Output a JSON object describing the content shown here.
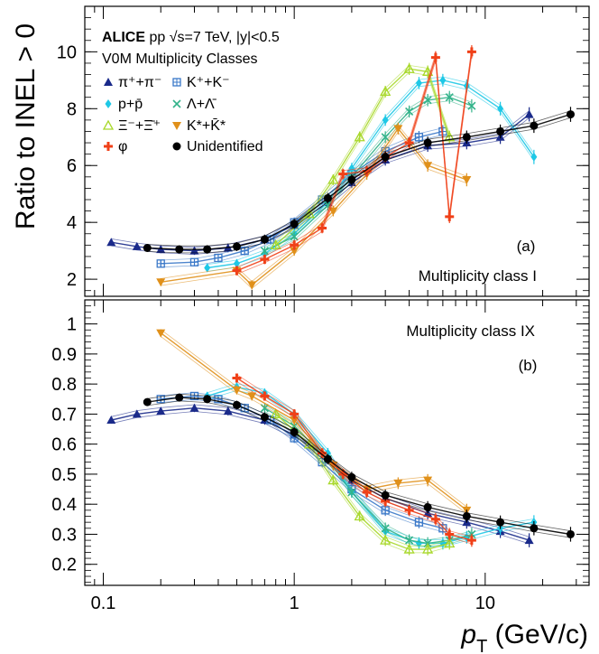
{
  "chart_data": [
    {
      "panel": "a",
      "type": "line",
      "panel_label": "(a)",
      "class_label": "Multiplicity class I",
      "ylim": [
        1.4,
        11.6
      ],
      "yticks": [
        2,
        4,
        6,
        8,
        10
      ],
      "header": {
        "title_bold": "ALICE",
        "title_rest": " pp √s=7 TeV, |y|<0.5",
        "subtitle": "V0M Multiplicity Classes"
      },
      "legend": [
        {
          "label": "π⁺+π⁻",
          "marker": "triangle",
          "color": "#1a2a8a"
        },
        {
          "label": "K⁺+K⁻",
          "marker": "cross-square",
          "color": "#3a78c8"
        },
        {
          "label": "p+p̄",
          "marker": "diamond",
          "color": "#1ec8e6"
        },
        {
          "label": "Λ+Λ̄",
          "marker": "x",
          "color": "#33b38a"
        },
        {
          "label": "Ξ⁻+Ξ̄⁺",
          "marker": "open-triangle",
          "color": "#a8d82a"
        },
        {
          "label": "K*+K̄*",
          "marker": "down-triangle",
          "color": "#e0901a"
        },
        {
          "label": "φ",
          "marker": "plus",
          "color": "#f04018"
        },
        {
          "label": "Unidentified",
          "marker": "circle",
          "color": "#000000"
        }
      ],
      "series": [
        {
          "name": "π⁺+π⁻",
          "x": [
            0.11,
            0.15,
            0.2,
            0.3,
            0.45,
            0.7,
            1.0,
            1.5,
            2.0,
            3.0,
            5.0,
            8.0,
            12.0,
            17.0
          ],
          "y": [
            3.3,
            3.15,
            3.05,
            3.0,
            3.1,
            3.4,
            3.9,
            4.7,
            5.4,
            6.2,
            6.7,
            6.8,
            7.0,
            7.8
          ]
        },
        {
          "name": "K⁺+K⁻",
          "x": [
            0.2,
            0.3,
            0.4,
            0.55,
            0.75,
            1.0,
            1.4,
            2.0,
            3.0,
            4.5,
            6.0
          ],
          "y": [
            2.55,
            2.6,
            2.75,
            3.0,
            3.4,
            4.0,
            4.8,
            5.7,
            6.5,
            7.0,
            7.2
          ]
        },
        {
          "name": "p+p̄",
          "x": [
            0.35,
            0.5,
            0.7,
            1.0,
            1.5,
            2.0,
            3.0,
            4.5,
            6.0,
            8.0,
            12.0,
            18.0
          ],
          "y": [
            2.4,
            2.55,
            2.9,
            3.6,
            4.7,
            5.9,
            7.6,
            8.9,
            9.0,
            8.8,
            8.0,
            6.3
          ]
        },
        {
          "name": "Λ+Λ̄",
          "x": [
            0.7,
            1.0,
            1.5,
            2.0,
            3.0,
            4.0,
            5.0,
            6.5,
            8.5
          ],
          "y": [
            3.0,
            3.5,
            4.6,
            5.6,
            7.0,
            7.9,
            8.3,
            8.4,
            8.1
          ]
        },
        {
          "name": "Ξ⁻+Ξ̄⁺",
          "x": [
            0.8,
            1.2,
            1.6,
            2.2,
            3.0,
            4.0,
            5.0,
            6.5
          ],
          "y": [
            3.2,
            4.3,
            5.5,
            7.0,
            8.6,
            9.4,
            9.3,
            7.0
          ]
        },
        {
          "name": "K*+K̄*",
          "x": [
            0.2,
            0.5,
            0.6,
            1.0,
            1.6,
            2.4,
            3.5,
            5.0,
            8.0
          ],
          "y": [
            1.9,
            2.3,
            1.8,
            3.0,
            4.4,
            5.7,
            7.3,
            6.0,
            5.5
          ]
        },
        {
          "name": "φ",
          "x": [
            0.5,
            0.7,
            1.0,
            1.4,
            1.8,
            2.4,
            3.0,
            4.0,
            5.5,
            6.5,
            8.5
          ],
          "y": [
            2.3,
            2.7,
            3.2,
            3.8,
            5.7,
            5.8,
            6.3,
            6.8,
            9.8,
            4.2,
            10.0
          ]
        },
        {
          "name": "Unidentified",
          "x": [
            0.17,
            0.25,
            0.35,
            0.5,
            0.7,
            1.0,
            1.5,
            2.0,
            3.0,
            5.0,
            8.0,
            12.0,
            18.0,
            28.0
          ],
          "y": [
            3.1,
            3.05,
            3.05,
            3.15,
            3.4,
            3.95,
            4.85,
            5.5,
            6.3,
            6.8,
            7.0,
            7.2,
            7.4,
            7.8
          ]
        }
      ]
    },
    {
      "panel": "b",
      "type": "line",
      "panel_label": "(b)",
      "class_label": "Multiplicity class IX",
      "ylim": [
        0.13,
        1.08
      ],
      "yticks": [
        0.2,
        0.3,
        0.4,
        0.5,
        0.6,
        0.7,
        0.8,
        0.9,
        1.0
      ],
      "series": [
        {
          "name": "π⁺+π⁻",
          "x": [
            0.11,
            0.15,
            0.2,
            0.3,
            0.45,
            0.7,
            1.0,
            1.5,
            2.0,
            3.0,
            5.0,
            8.0,
            12.0,
            17.0
          ],
          "y": [
            0.68,
            0.7,
            0.71,
            0.72,
            0.71,
            0.68,
            0.63,
            0.55,
            0.48,
            0.42,
            0.37,
            0.34,
            0.31,
            0.28
          ]
        },
        {
          "name": "K⁺+K⁻",
          "x": [
            0.2,
            0.3,
            0.4,
            0.55,
            0.75,
            1.0,
            1.4,
            2.0,
            3.0,
            4.5,
            6.0
          ],
          "y": [
            0.75,
            0.76,
            0.75,
            0.72,
            0.68,
            0.62,
            0.54,
            0.45,
            0.38,
            0.34,
            0.32
          ]
        },
        {
          "name": "p+p̄",
          "x": [
            0.35,
            0.5,
            0.7,
            1.0,
            1.5,
            2.0,
            3.0,
            4.5,
            6.0,
            8.0,
            12.0,
            18.0
          ],
          "y": [
            0.76,
            0.79,
            0.77,
            0.7,
            0.57,
            0.44,
            0.31,
            0.27,
            0.27,
            0.29,
            0.32,
            0.34
          ]
        },
        {
          "name": "Λ+Λ̄",
          "x": [
            0.7,
            1.0,
            1.5,
            2.0,
            3.0,
            4.0,
            5.0,
            6.5,
            8.5
          ],
          "y": [
            0.72,
            0.66,
            0.55,
            0.44,
            0.32,
            0.28,
            0.27,
            0.28,
            0.3
          ]
        },
        {
          "name": "Ξ⁻+Ξ̄⁺",
          "x": [
            0.8,
            1.2,
            1.6,
            2.2,
            3.0,
            4.0,
            5.0,
            6.5
          ],
          "y": [
            0.7,
            0.6,
            0.48,
            0.36,
            0.28,
            0.25,
            0.25,
            0.27
          ]
        },
        {
          "name": "K*+K̄*",
          "x": [
            0.2,
            0.5,
            0.6,
            1.0,
            1.6,
            2.4,
            3.5,
            5.0,
            8.0
          ],
          "y": [
            0.97,
            0.78,
            0.76,
            0.68,
            0.53,
            0.45,
            0.47,
            0.48,
            0.38
          ]
        },
        {
          "name": "φ",
          "x": [
            0.5,
            0.7,
            1.0,
            1.4,
            1.8,
            2.4,
            3.0,
            4.0,
            5.5,
            6.5,
            8.5
          ],
          "y": [
            0.82,
            0.76,
            0.7,
            0.57,
            0.5,
            0.44,
            0.41,
            0.38,
            0.35,
            0.3,
            0.28
          ]
        },
        {
          "name": "Unidentified",
          "x": [
            0.17,
            0.25,
            0.35,
            0.5,
            0.7,
            1.0,
            1.5,
            2.0,
            3.0,
            5.0,
            8.0,
            12.0,
            18.0,
            28.0
          ],
          "y": [
            0.74,
            0.755,
            0.75,
            0.73,
            0.69,
            0.64,
            0.55,
            0.49,
            0.43,
            0.39,
            0.36,
            0.34,
            0.32,
            0.3
          ]
        }
      ]
    }
  ],
  "axes": {
    "xlabel_main": "p",
    "xlabel_sub": "T",
    "xlabel_units": " (GeV/c)",
    "ylabel": "Ratio to INEL > 0",
    "xlim": [
      0.08,
      35
    ],
    "xscale": "log",
    "xticks": [
      {
        "value": 0.1,
        "label": "0.1"
      },
      {
        "value": 1,
        "label": "1"
      },
      {
        "value": 10,
        "label": "10"
      }
    ]
  }
}
